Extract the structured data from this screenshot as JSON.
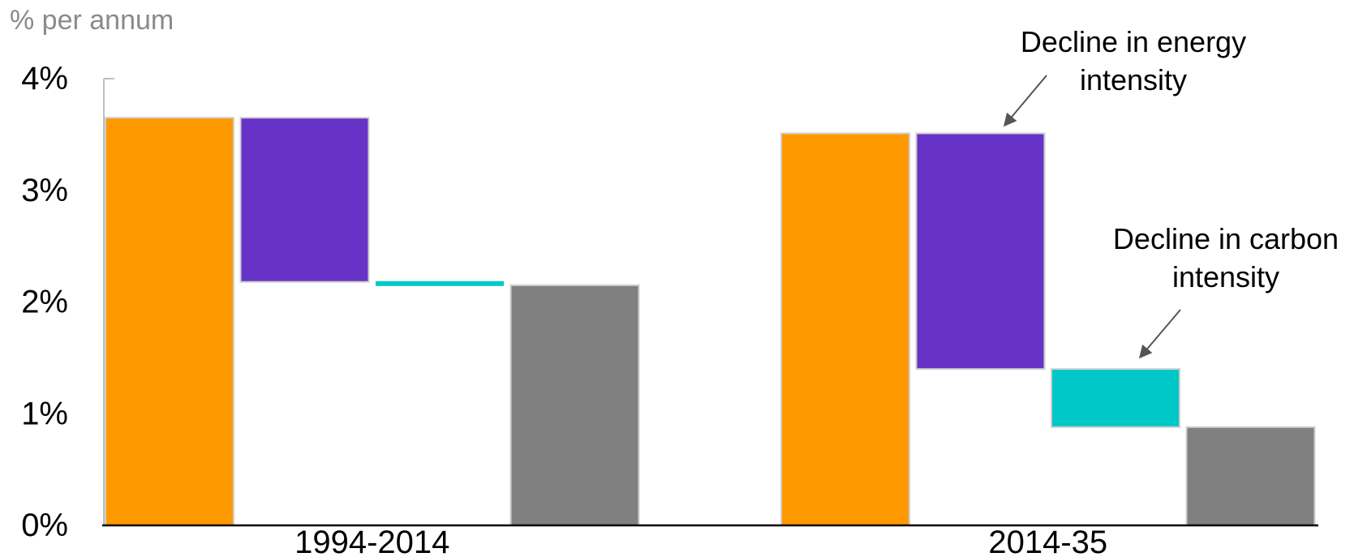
{
  "chart_data": {
    "type": "bar",
    "subtype": "waterfall",
    "unit_label": "% per annum",
    "y_ticks": [
      "0%",
      "1%",
      "2%",
      "3%",
      "4%"
    ],
    "ylim": [
      0,
      4
    ],
    "grid": false,
    "legend": "none",
    "categories": [
      "1994-2014",
      "2014-35"
    ],
    "groups": [
      {
        "category": "1994-2014",
        "bars": [
          {
            "kind": "total",
            "start": 0,
            "end": 3.65,
            "color": "#ff9900"
          },
          {
            "kind": "decrease",
            "start": 3.65,
            "end": 2.18,
            "color": "#6633c6"
          },
          {
            "kind": "decrease",
            "start": 2.18,
            "end": 2.15,
            "color": "#00c8c8"
          },
          {
            "kind": "total",
            "start": 0,
            "end": 2.15,
            "color": "#808080"
          }
        ]
      },
      {
        "category": "2014-35",
        "bars": [
          {
            "kind": "total",
            "start": 0,
            "end": 3.51,
            "color": "#ff9900"
          },
          {
            "kind": "decrease",
            "start": 3.51,
            "end": 1.4,
            "color": "#6633c6"
          },
          {
            "kind": "decrease",
            "start": 1.4,
            "end": 0.88,
            "color": "#00c8c8"
          },
          {
            "kind": "total",
            "start": 0,
            "end": 0.88,
            "color": "#808080"
          }
        ]
      }
    ],
    "annotations": [
      {
        "lines": [
          "Decline in energy",
          "intensity"
        ],
        "points_to": "2014-35 purple bar top"
      },
      {
        "lines": [
          "Decline in carbon",
          "intensity"
        ],
        "points_to": "2014-35 teal bar top"
      }
    ]
  }
}
